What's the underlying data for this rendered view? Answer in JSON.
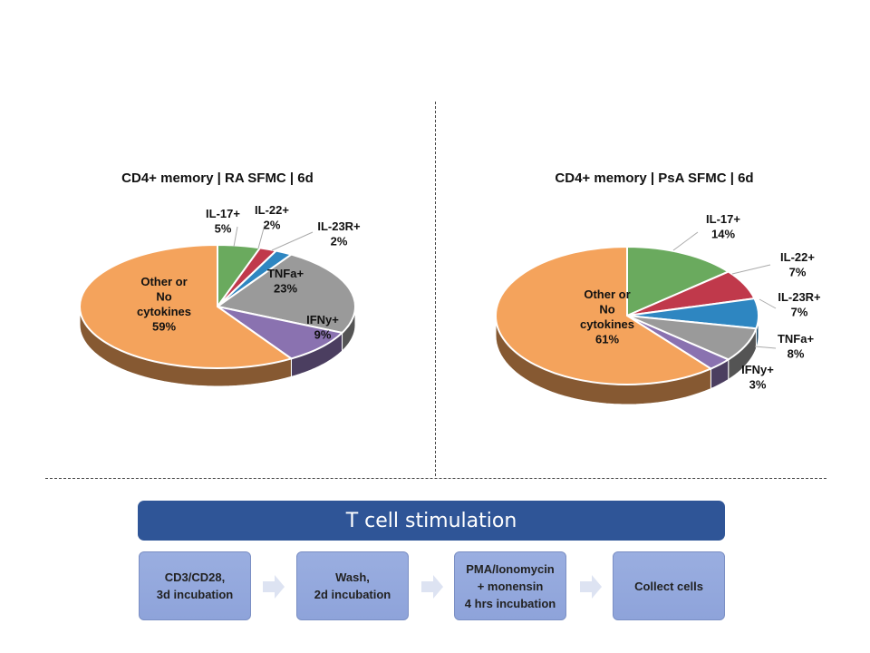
{
  "chart_data": [
    {
      "type": "pie",
      "title": "CD4+ memory | RA SFMC | 6d",
      "slices": [
        {
          "label": "IL-17+",
          "value": 5,
          "display": "5%",
          "color": "#6aaa5e"
        },
        {
          "label": "IL-22+",
          "value": 2,
          "display": "2%",
          "color": "#c0394b"
        },
        {
          "label": "IL-23R+",
          "value": 2,
          "display": "2%",
          "color": "#2e86c1"
        },
        {
          "label": "TNFa+",
          "value": 23,
          "display": "23%",
          "color": "#9a9a9a"
        },
        {
          "label": "IFNy+",
          "value": 9,
          "display": "9%",
          "color": "#8a72b0"
        },
        {
          "label": "Other or No cytokines",
          "value": 59,
          "display": "59%",
          "color": "#f4a35c"
        }
      ]
    },
    {
      "type": "pie",
      "title": "CD4+ memory | PsA SFMC | 6d",
      "slices": [
        {
          "label": "IL-17+",
          "value": 14,
          "display": "14%",
          "color": "#6aaa5e"
        },
        {
          "label": "IL-22+",
          "value": 7,
          "display": "7%",
          "color": "#c0394b"
        },
        {
          "label": "IL-23R+",
          "value": 7,
          "display": "7%",
          "color": "#2e86c1"
        },
        {
          "label": "TNFa+",
          "value": 8,
          "display": "8%",
          "color": "#9a9a9a"
        },
        {
          "label": "IFNy+",
          "value": 3,
          "display": "3%",
          "color": "#8a72b0"
        },
        {
          "label": "Other or No cytokines",
          "value": 61,
          "display": "61%",
          "color": "#f4a35c"
        }
      ]
    }
  ],
  "flow": {
    "banner": "T cell stimulation",
    "steps": [
      {
        "lines": [
          "CD3/CD28,",
          "3d incubation"
        ]
      },
      {
        "lines": [
          "Wash,",
          "2d incubation"
        ]
      },
      {
        "lines": [
          "PMA/Ionomycin",
          "+ monensin",
          "4 hrs incubation"
        ]
      },
      {
        "lines": [
          "Collect cells"
        ]
      }
    ]
  }
}
